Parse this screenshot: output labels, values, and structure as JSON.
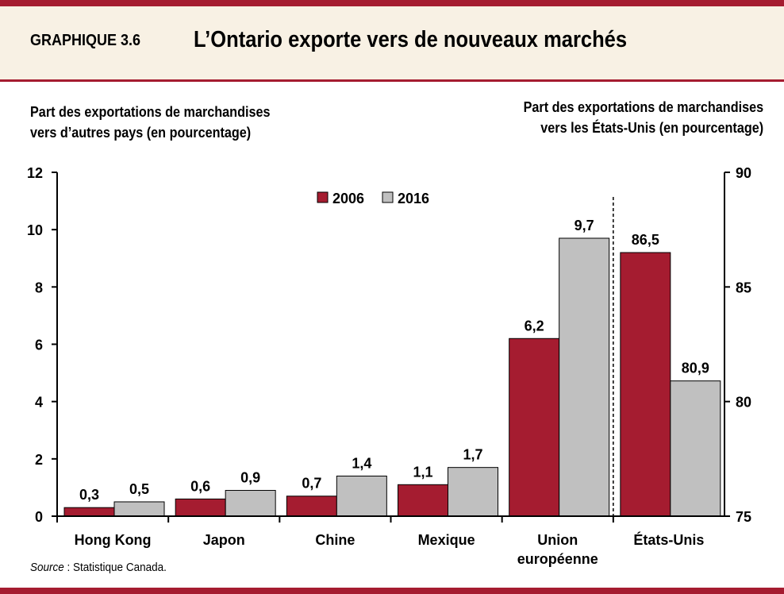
{
  "header": {
    "number": "GRAPHIQUE 3.6",
    "title": "L’Ontario exporte vers de nouveaux marchés"
  },
  "source": {
    "label": "Source",
    "text": " : Statistique  Canada."
  },
  "colors": {
    "series_2006": "#a51c30",
    "series_2016": "#c0c0c0",
    "accent": "#a51c30",
    "header_bg": "#f8f1e4"
  },
  "chart_data": {
    "type": "bar",
    "title": "L’Ontario exporte vers de nouveaux marchés",
    "ylabel_left": [
      "Part des exportations de marchandises",
      "vers d’autres pays (en pourcentage)"
    ],
    "ylabel_right": [
      "Part des exportations de marchandises",
      "vers les États-Unis (en pourcentage)"
    ],
    "categories": [
      "Hong Kong",
      "Japon",
      "Chine",
      "Mexique",
      "Union européenne",
      "États-Unis"
    ],
    "category_lines": [
      [
        "Hong Kong"
      ],
      [
        "Japon"
      ],
      [
        "Chine"
      ],
      [
        "Mexique"
      ],
      [
        "Union",
        "européenne"
      ],
      [
        "États-Unis"
      ]
    ],
    "series": [
      {
        "name": "2006",
        "values": [
          0.3,
          0.6,
          0.7,
          1.1,
          6.2,
          86.5
        ],
        "labels": [
          "0,3",
          "0,6",
          "0,7",
          "1,1",
          "6,2",
          "86,5"
        ]
      },
      {
        "name": "2016",
        "values": [
          0.5,
          0.9,
          1.4,
          1.7,
          9.7,
          80.9
        ],
        "labels": [
          "0,5",
          "0,9",
          "1,4",
          "1,7",
          "9,7",
          "80,9"
        ]
      }
    ],
    "right_axis_categories": [
      "États-Unis"
    ],
    "ylim_left": [
      0,
      12
    ],
    "yticks_left": [
      0,
      2,
      4,
      6,
      8,
      10,
      12
    ],
    "ylim_right": [
      75,
      90
    ],
    "yticks_right": [
      75,
      80,
      85,
      90
    ],
    "grid": false,
    "legend_placement": "top-center"
  }
}
